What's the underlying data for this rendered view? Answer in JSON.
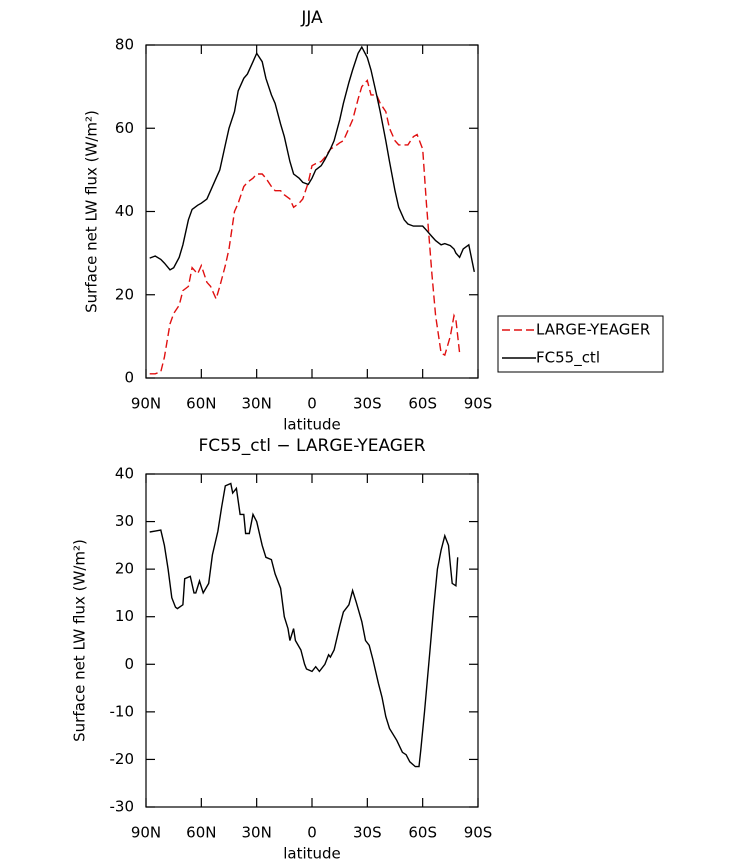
{
  "chart_data": [
    {
      "type": "line",
      "title": "JJA",
      "x_label": "latitude",
      "y_label": "Surface net LW flux (W/m²)",
      "legend": "right",
      "xlim": [
        90,
        -90
      ],
      "xticks": [
        {
          "value": 90,
          "label": "90N"
        },
        {
          "value": 60,
          "label": "60N"
        },
        {
          "value": 30,
          "label": "30N"
        },
        0,
        {
          "value": -30,
          "label": "30S"
        },
        {
          "value": -60,
          "label": "60S"
        },
        {
          "value": -90,
          "label": "90S"
        }
      ],
      "ylim": [
        0,
        80
      ],
      "yticks": [
        0,
        20,
        40,
        60,
        80
      ],
      "x": [
        88,
        85,
        82,
        80,
        77,
        75,
        72,
        70,
        67,
        65,
        62,
        60,
        57,
        55,
        52,
        50,
        47,
        45,
        42,
        40,
        37,
        35,
        32,
        30,
        27,
        25,
        22,
        20,
        17,
        15,
        12,
        10,
        7,
        5,
        2,
        0,
        -2,
        -5,
        -7,
        -10,
        -12,
        -15,
        -17,
        -20,
        -22,
        -25,
        -27,
        -30,
        -32,
        -35,
        -37,
        -40,
        -42,
        -45,
        -47,
        -50,
        -52,
        -55,
        -57,
        -60,
        -62,
        -65,
        -67,
        -70,
        -72,
        -75,
        -77,
        -78,
        -80,
        -82,
        -85,
        -88
      ],
      "series": [
        {
          "name": "LARGE-YEAGER",
          "color": "#e01010",
          "dash": true,
          "values": [
            1,
            1,
            1.5,
            5,
            13,
            15.5,
            17.5,
            21,
            22,
            26.5,
            25,
            27,
            23,
            22,
            19,
            22,
            27,
            31,
            40,
            42,
            46,
            47,
            48,
            49,
            49,
            48,
            46,
            45,
            45,
            44,
            43,
            41,
            42,
            43,
            47,
            51,
            51.5,
            52,
            53,
            55,
            55.5,
            56.5,
            57,
            60,
            62,
            67,
            70,
            71.5,
            68,
            68,
            66,
            64,
            60,
            57,
            56,
            56,
            56,
            58,
            58.5,
            55,
            42,
            25,
            15,
            6,
            5.5,
            10,
            15,
            14,
            6,
            null,
            null,
            null
          ]
        },
        {
          "name": "FC55_ctl",
          "color": "#000000",
          "dash": false,
          "values": [
            28.8,
            29.3,
            28.5,
            27.6,
            26,
            26.5,
            29,
            32,
            38,
            40.5,
            41.5,
            42,
            43,
            45,
            48,
            50,
            56,
            60,
            64,
            69,
            72,
            73,
            76,
            78,
            76,
            72,
            68,
            66,
            61,
            58,
            52,
            49,
            48,
            47,
            46.5,
            48,
            50,
            51,
            52.5,
            55,
            57,
            62,
            66,
            71,
            74,
            78,
            79.5,
            77,
            74,
            68,
            64,
            57,
            52,
            45,
            41,
            38,
            37,
            36.5,
            36.5,
            36.5,
            35.5,
            34,
            33,
            32,
            32.3,
            31.8,
            31,
            30,
            29,
            31,
            32,
            25.5
          ]
        }
      ]
    },
    {
      "type": "line",
      "title": "FC55_ctl − LARGE-YEAGER",
      "x_label": "latitude",
      "y_label": "Surface net LW flux (W/m²)",
      "color": "#000000",
      "xlim": [
        90,
        -90
      ],
      "xticks": [
        {
          "value": 90,
          "label": "90N"
        },
        {
          "value": 60,
          "label": "60N"
        },
        {
          "value": 30,
          "label": "30N"
        },
        0,
        {
          "value": -30,
          "label": "30S"
        },
        {
          "value": -60,
          "label": "60S"
        },
        {
          "value": -90,
          "label": "90S"
        }
      ],
      "ylim": [
        -30,
        40
      ],
      "yticks": [
        -30,
        -20,
        -10,
        0,
        10,
        20,
        30,
        40
      ],
      "x": [
        88,
        85,
        82,
        80,
        78,
        76,
        74,
        73,
        70,
        69,
        66,
        64,
        63,
        61,
        59,
        56,
        54,
        51,
        49,
        47,
        44,
        43,
        41,
        39,
        37,
        36,
        34,
        32,
        30,
        27,
        25,
        22,
        20,
        17,
        15,
        13,
        12,
        10,
        9,
        6,
        4,
        3,
        0,
        -2,
        -4,
        -7,
        -9,
        -10,
        -12,
        -15,
        -17,
        -20,
        -22,
        -24,
        -27,
        -29,
        -31,
        -33,
        -36,
        -38,
        -40,
        -42,
        -46,
        -49,
        -51,
        -53,
        -56,
        -58,
        -59,
        -61,
        -64,
        -66,
        -68,
        -70,
        -72,
        -74,
        -75,
        -76,
        -78,
        -79
      ],
      "values": [
        27.8,
        28,
        28.2,
        25,
        20,
        14,
        12,
        11.7,
        12.5,
        18,
        18.5,
        15,
        15,
        17.5,
        15,
        17,
        23,
        28,
        33,
        37.5,
        38,
        36,
        37,
        31.5,
        31.5,
        27.5,
        27.5,
        31.5,
        30,
        25,
        22.5,
        22,
        19,
        16,
        10,
        7.5,
        5,
        7.5,
        5,
        3,
        0,
        -1,
        -1.5,
        -0.5,
        -1.5,
        0,
        2,
        1.5,
        3,
        8,
        11,
        12.5,
        15.5,
        13,
        9,
        5,
        4,
        1,
        -4,
        -7,
        -11,
        -13.5,
        -16,
        -18.5,
        -19,
        -20.5,
        -21.5,
        -21.5,
        -18,
        -10,
        3,
        12,
        20,
        24,
        27,
        25,
        21,
        17,
        16.5,
        22.5
      ]
    }
  ]
}
